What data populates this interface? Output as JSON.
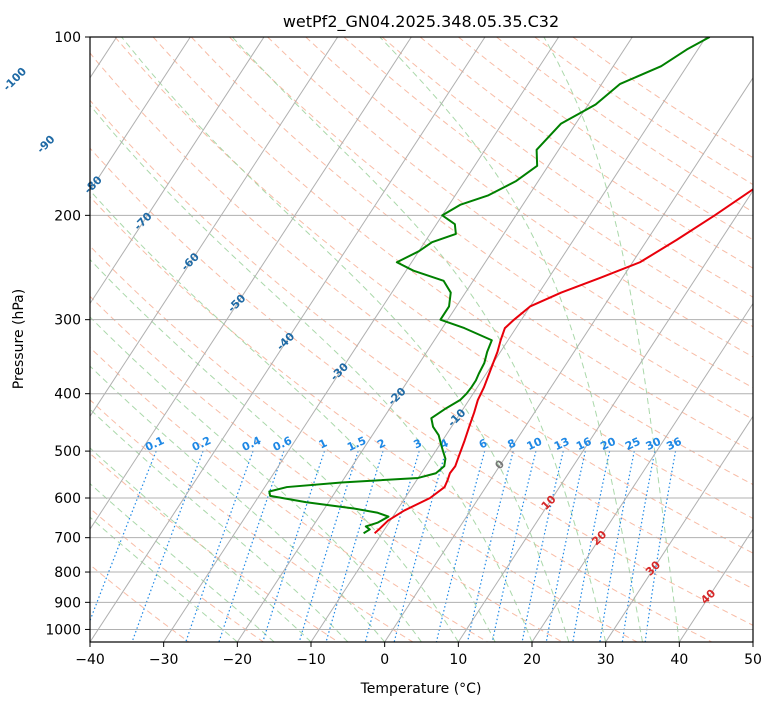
{
  "chart_data": {
    "type": "line",
    "title": "wetPf2_GN04.2025.348.05.35.C32",
    "xlabel": "Temperature (°C)",
    "ylabel": "Pressure (hPa)",
    "xlim": [
      -40,
      50
    ],
    "ylim": [
      1050,
      100
    ],
    "y_scale": "log",
    "grid": true,
    "x_ticks": [
      -40,
      -30,
      -20,
      -10,
      0,
      10,
      20,
      30,
      40,
      50
    ],
    "y_ticks": [
      100,
      200,
      300,
      400,
      500,
      600,
      700,
      800,
      900,
      1000
    ],
    "x_tick_labels": [
      "−40",
      "−30",
      "−20",
      "−10",
      "0",
      "10",
      "20",
      "30",
      "40",
      "50"
    ],
    "y_tick_labels": [
      "100",
      "200",
      "300",
      "400",
      "500",
      "600",
      "700",
      "800",
      "900",
      "1000"
    ],
    "series": [
      {
        "color": "#e8000b",
        "pressure": [
          688,
          675,
          655,
          630,
          600,
          575,
          560,
          545,
          530,
          510,
          480,
          455,
          430,
          410,
          390,
          370,
          355,
          340,
          325,
          310,
          300,
          285,
          270,
          255,
          240,
          220,
          200,
          180,
          160,
          140,
          120,
          108,
          100
        ],
        "temperature": [
          -11.0,
          -10.7,
          -10.3,
          -9.0,
          -6.6,
          -5.6,
          -5.8,
          -6.1,
          -6.0,
          -6.4,
          -7.0,
          -7.6,
          -8.2,
          -8.8,
          -9.1,
          -9.6,
          -10.0,
          -10.4,
          -11.0,
          -11.5,
          -11.0,
          -10.0,
          -7.0,
          -3.0,
          1.0,
          4.0,
          7.0,
          10.0,
          13.5,
          18.0,
          22.0,
          25.0,
          28.0
        ]
      },
      {
        "color": "#008000",
        "pressure": [
          688,
          678,
          670,
          660,
          645,
          635,
          625,
          610,
          595,
          585,
          575,
          565,
          555,
          545,
          530,
          515,
          500,
          485,
          470,
          455,
          440,
          425,
          410,
          400,
          390,
          380,
          370,
          355,
          340,
          325,
          310,
          300,
          285,
          270,
          258,
          248,
          240,
          230,
          222,
          215,
          207,
          200,
          192,
          185,
          175,
          165,
          155,
          140,
          130,
          120,
          112,
          105,
          100
        ],
        "temperature": [
          -12.5,
          -12.0,
          -12.8,
          -11.5,
          -10.6,
          -12.5,
          -16.0,
          -23.0,
          -28.5,
          -29.0,
          -27.0,
          -20.0,
          -10.0,
          -8.0,
          -7.5,
          -8.0,
          -9.0,
          -10.0,
          -11.0,
          -12.5,
          -13.5,
          -12.5,
          -11.2,
          -10.9,
          -10.8,
          -10.8,
          -11.0,
          -11.2,
          -11.8,
          -12.2,
          -17.0,
          -21.0,
          -21.0,
          -22.0,
          -24.0,
          -29.0,
          -32.0,
          -30.0,
          -29.0,
          -26.5,
          -27.5,
          -30.0,
          -28.5,
          -25.5,
          -23.0,
          -21.5,
          -23.0,
          -22.0,
          -19.0,
          -17.5,
          -13.5,
          -11.5,
          -9.5
        ]
      }
    ],
    "isotherm_labels": [
      "-100",
      "-90",
      "-80",
      "-70",
      "-60",
      "-50",
      "-40",
      "-30",
      "-20",
      "-10",
      "0",
      "10",
      "20",
      "30",
      "40"
    ],
    "mixing_ratio_labels": [
      "0.1",
      "0.2",
      "0.4",
      "0.6",
      "1",
      "1.5",
      "2",
      "3",
      "4",
      "6",
      "8",
      "10",
      "13",
      "16",
      "20",
      "25",
      "30",
      "36"
    ],
    "colors": {
      "temperature": "#e8000b",
      "dewpoint": "#008000",
      "isotherm_cold_label": "#1f6aa5",
      "isotherm_warm_label": "#d62728",
      "mixing_ratio": "#1e88e5",
      "dry_adiabat": "#f5a588",
      "moist_adiabat": "#9bd19b",
      "grid": "#b0b0b0"
    }
  }
}
